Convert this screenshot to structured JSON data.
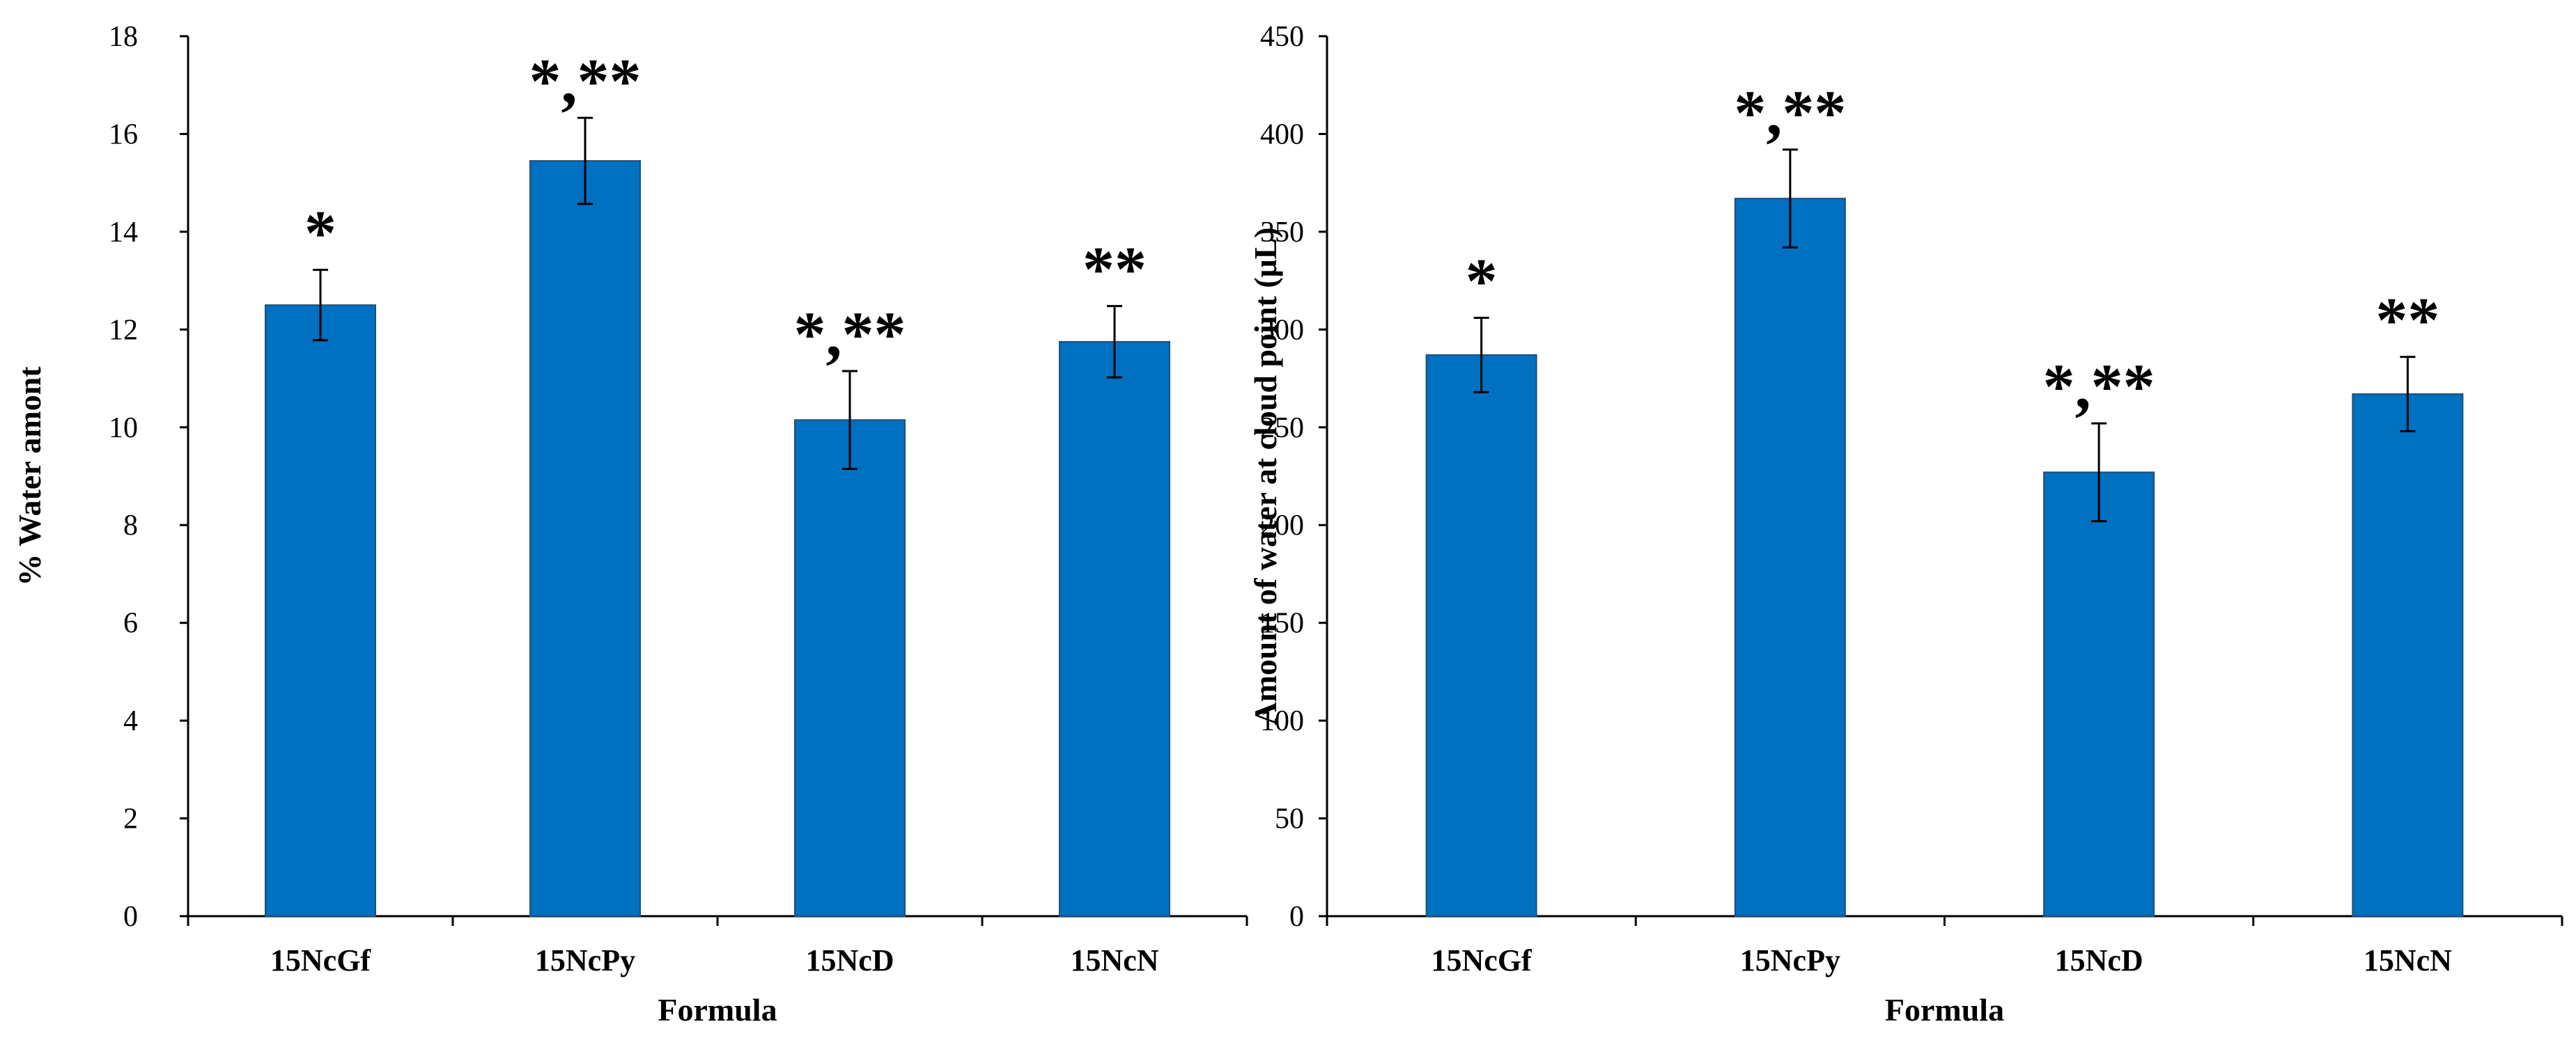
{
  "chart_data": [
    {
      "type": "bar",
      "title": "",
      "xlabel": "Formula",
      "ylabel": "% Water amont",
      "categories": [
        "15NcGf",
        "15NcPy",
        "15NcD",
        "15NcN"
      ],
      "series": [
        {
          "name": "% Water amont",
          "values": [
            12.5,
            15.45,
            10.15,
            11.75
          ],
          "errors": [
            0.72,
            0.88,
            1.0,
            0.73
          ]
        }
      ],
      "ylim": [
        0,
        18
      ],
      "yticks": [
        0,
        2,
        4,
        6,
        8,
        10,
        12,
        14,
        16,
        18
      ],
      "annotations": [
        "*",
        "*,**",
        "*,**",
        "**"
      ],
      "bar_color": "#0070C0",
      "grid": false
    },
    {
      "type": "bar",
      "title": "",
      "xlabel": "Formula",
      "ylabel": "Amount of water at cloud point (μL)",
      "categories": [
        "15NcGf",
        "15NcPy",
        "15NcD",
        "15NcN"
      ],
      "series": [
        {
          "name": "Amount of water at cloud point (μL)",
          "values": [
            287,
            367,
            227,
            267
          ],
          "errors": [
            19,
            25,
            25,
            19
          ]
        }
      ],
      "ylim": [
        0,
        450
      ],
      "yticks": [
        0,
        50,
        100,
        150,
        200,
        250,
        300,
        350,
        400,
        450
      ],
      "annotations": [
        "*",
        "*,**",
        "*,**",
        "**"
      ],
      "bar_color": "#0070C0",
      "grid": false
    }
  ]
}
